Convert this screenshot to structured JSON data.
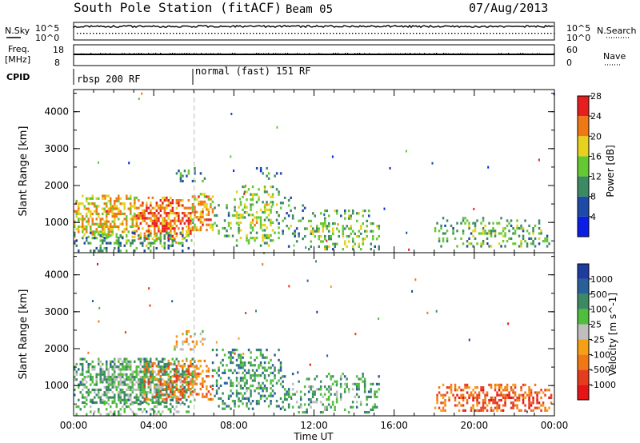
{
  "header": {
    "title": "South Pole Station (fitACF)",
    "beam": "Beam 05",
    "date": "07/Aug/2013"
  },
  "params": {
    "nsky_label": "N.Sky",
    "nsearch_label": "N.Search",
    "freq_label_1": "Freq.",
    "freq_label_2": "[MHz]",
    "nave_label": "Nave",
    "cpid_label": "CPID",
    "noise_ticks_left": [
      "10^5",
      "10^0"
    ],
    "noise_ticks_right": [
      "10^5",
      "10^0"
    ],
    "freq_ticks": [
      "18",
      "8"
    ],
    "nave_ticks": [
      "60",
      "0"
    ]
  },
  "cpid_segments": [
    {
      "label": "rbsp 200 RF",
      "start_hour": 0
    },
    {
      "label": "normal (fast) 151 RF",
      "start_hour": 6.02
    }
  ],
  "chart_data": [
    {
      "type": "heatmap",
      "title": "",
      "xlabel": "Time UT",
      "ylabel": "Slant Range [km]",
      "x_ticks": [
        "00:00",
        "04:00",
        "08:00",
        "12:00",
        "16:00",
        "20:00",
        "00:00"
      ],
      "xlim_hours": [
        0,
        24
      ],
      "y_ticks": [
        1000,
        2000,
        3000,
        4000
      ],
      "ylim_km": [
        180,
        4600
      ],
      "colorbar_label": "Power [dB]",
      "colorbar_ticks": [
        4,
        8,
        12,
        16,
        20,
        24,
        28
      ],
      "colorbar_colors": [
        "#0a1ee6",
        "#1e4aa8",
        "#3c8a64",
        "#64c832",
        "#e6d21e",
        "#f07814",
        "#e61e1e"
      ],
      "clusters": [
        {
          "t0": 0.0,
          "t1": 3.0,
          "r0": 600,
          "r1": 1750,
          "density": 0.65,
          "level": 3.6
        },
        {
          "t0": 3.0,
          "t1": 5.8,
          "r0": 550,
          "r1": 1700,
          "density": 0.7,
          "level": 4.6
        },
        {
          "t0": 5.9,
          "t1": 6.9,
          "r0": 800,
          "r1": 1800,
          "density": 0.65,
          "level": 4.0
        },
        {
          "t0": 0.0,
          "t1": 5.8,
          "r0": 250,
          "r1": 750,
          "density": 0.35,
          "level": 1.6
        },
        {
          "t0": 6.9,
          "t1": 8.2,
          "r0": 600,
          "r1": 1500,
          "density": 0.3,
          "level": 1.8
        },
        {
          "t0": 8.0,
          "t1": 10.2,
          "r0": 400,
          "r1": 2000,
          "density": 0.35,
          "level": 2.6
        },
        {
          "t0": 10.2,
          "t1": 11.5,
          "r0": 300,
          "r1": 1700,
          "density": 0.18,
          "level": 1.5
        },
        {
          "t0": 11.5,
          "t1": 15.2,
          "r0": 300,
          "r1": 1350,
          "density": 0.28,
          "level": 2.2
        },
        {
          "t0": 18.0,
          "t1": 23.8,
          "r0": 350,
          "r1": 1150,
          "density": 0.32,
          "level": 2.0
        },
        {
          "t0": 5.0,
          "t1": 6.5,
          "r0": 2100,
          "r1": 2500,
          "density": 0.25,
          "level": 1.3
        },
        {
          "t0": 9.0,
          "t1": 10.3,
          "r0": 2200,
          "r1": 2500,
          "density": 0.22,
          "level": 1.2
        }
      ]
    },
    {
      "type": "heatmap",
      "title": "",
      "xlabel": "Time UT",
      "ylabel": "Slant Range [km]",
      "x_ticks": [
        "00:00",
        "04:00",
        "08:00",
        "12:00",
        "16:00",
        "20:00",
        "00:00"
      ],
      "xlim_hours": [
        0,
        24
      ],
      "y_ticks": [
        1000,
        2000,
        3000,
        4000
      ],
      "ylim_km": [
        180,
        4600
      ],
      "colorbar_label": "Velocity [m s^-1]",
      "colorbar_ticks": [
        "1000",
        "500",
        "100",
        "25",
        "-25",
        "-100",
        "-500",
        "-1000"
      ],
      "colorbar_colors": [
        "#1e3ca0",
        "#28609a",
        "#3c8a64",
        "#50be3c",
        "#bebebe",
        "#f5a014",
        "#f07814",
        "#e63c1e",
        "#e61414"
      ],
      "clusters": [
        {
          "t0": 0.0,
          "t1": 6.0,
          "r0": 550,
          "r1": 1750,
          "density": 0.72,
          "level": 2.2
        },
        {
          "t0": 3.5,
          "t1": 6.9,
          "r0": 600,
          "r1": 1700,
          "density": 0.5,
          "level": 5.5
        },
        {
          "t0": 6.9,
          "t1": 10.3,
          "r0": 400,
          "r1": 2000,
          "density": 0.4,
          "level": 1.6
        },
        {
          "t0": 10.3,
          "t1": 15.2,
          "r0": 250,
          "r1": 1350,
          "density": 0.3,
          "level": 2.0
        },
        {
          "t0": 18.0,
          "t1": 23.8,
          "r0": 350,
          "r1": 1050,
          "density": 0.55,
          "level": 6.0
        },
        {
          "t0": 0.0,
          "t1": 5.8,
          "r0": 200,
          "r1": 600,
          "density": 0.3,
          "level": 2.5
        },
        {
          "t0": 5.0,
          "t1": 6.5,
          "r0": 2000,
          "r1": 2500,
          "density": 0.25,
          "level": 4.2
        }
      ]
    }
  ]
}
